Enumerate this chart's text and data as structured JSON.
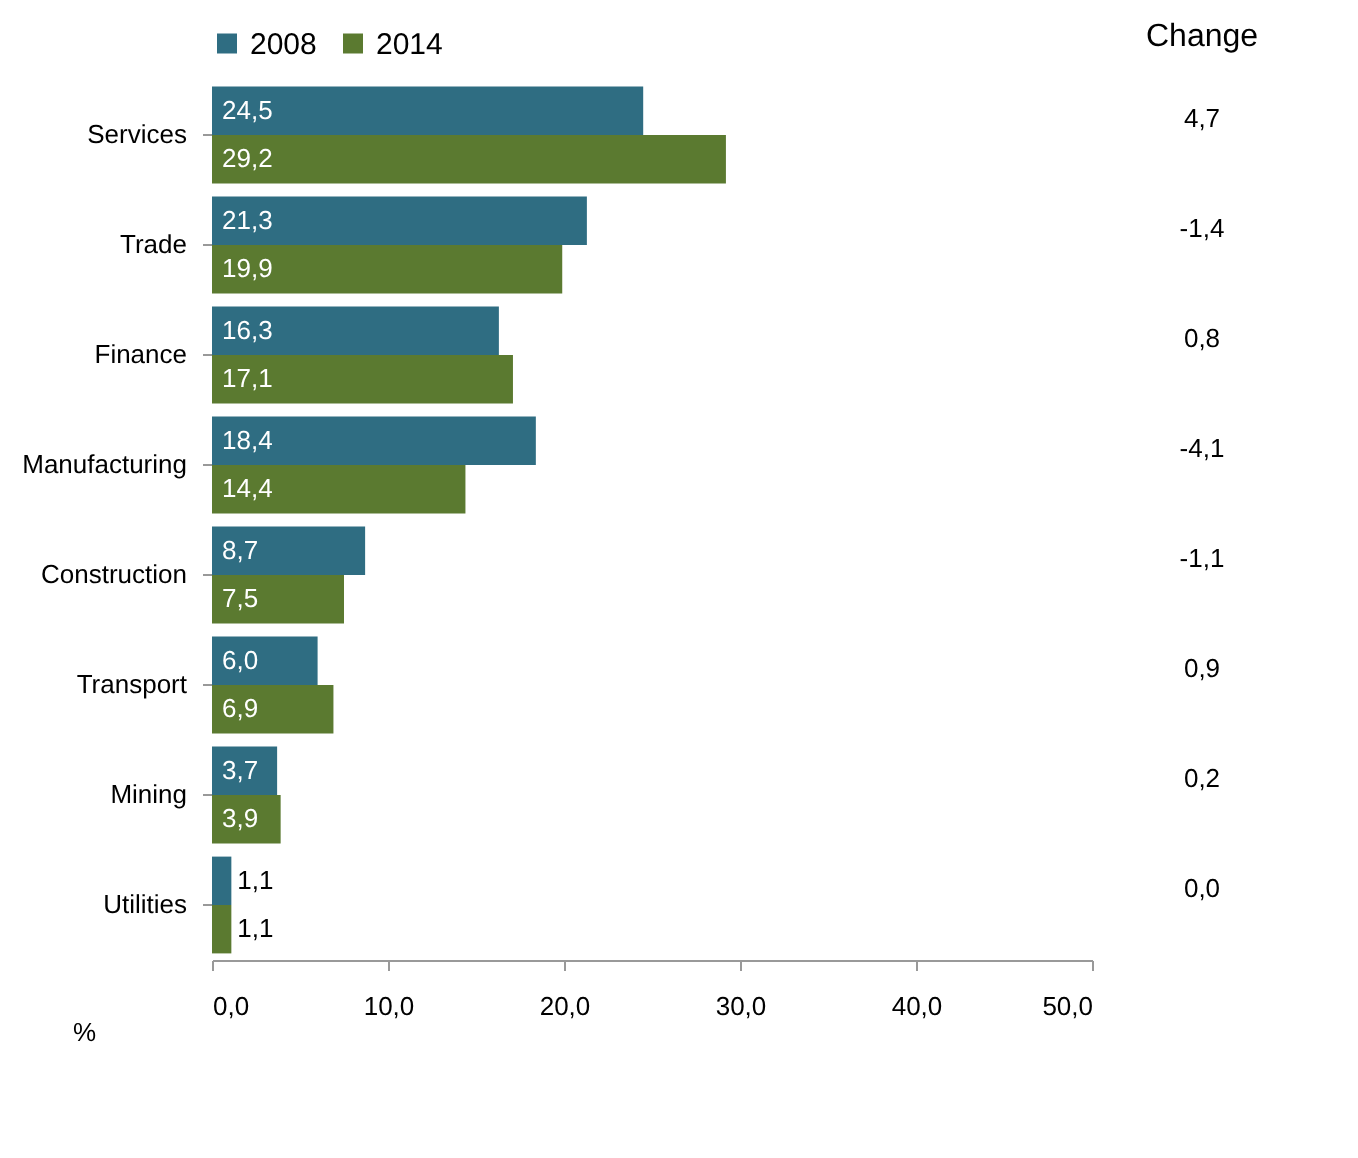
{
  "chart_data": {
    "type": "bar",
    "orientation": "horizontal",
    "xlabel": "%",
    "categories": [
      "Services",
      "Trade",
      "Finance",
      "Manufacturing",
      "Construction",
      "Transport",
      "Mining",
      "Utilities"
    ],
    "series": [
      {
        "name": "2008",
        "color": "#2f6d82",
        "values": [
          24.5,
          21.3,
          16.3,
          18.4,
          8.7,
          6.0,
          3.7,
          1.1
        ],
        "value_labels": [
          "24,5",
          "21,3",
          "16,3",
          "18,4",
          "8,7",
          "6,0",
          "3,7",
          "1,1"
        ]
      },
      {
        "name": "2014",
        "color": "#5b7a30",
        "values": [
          29.2,
          19.9,
          17.1,
          14.4,
          7.5,
          6.9,
          3.9,
          1.1
        ],
        "value_labels": [
          "29,2",
          "19,9",
          "17,1",
          "14,4",
          "7,5",
          "6,9",
          "3,9",
          "1,1"
        ]
      }
    ],
    "xlim": [
      0,
      50
    ],
    "xticks": [
      {
        "value": 0,
        "label": "0,0"
      },
      {
        "value": 10,
        "label": "10,0"
      },
      {
        "value": 20,
        "label": "20,0"
      },
      {
        "value": 30,
        "label": "30,0"
      },
      {
        "value": 40,
        "label": "40,0"
      },
      {
        "value": 50,
        "label": "50,0"
      }
    ],
    "grid": false,
    "legend": "top",
    "annotations": [
      "Change",
      "4,7",
      "-1,4",
      "0,8",
      "-4,1",
      "-1,1",
      "0,9",
      "0,2",
      "0,0"
    ]
  }
}
